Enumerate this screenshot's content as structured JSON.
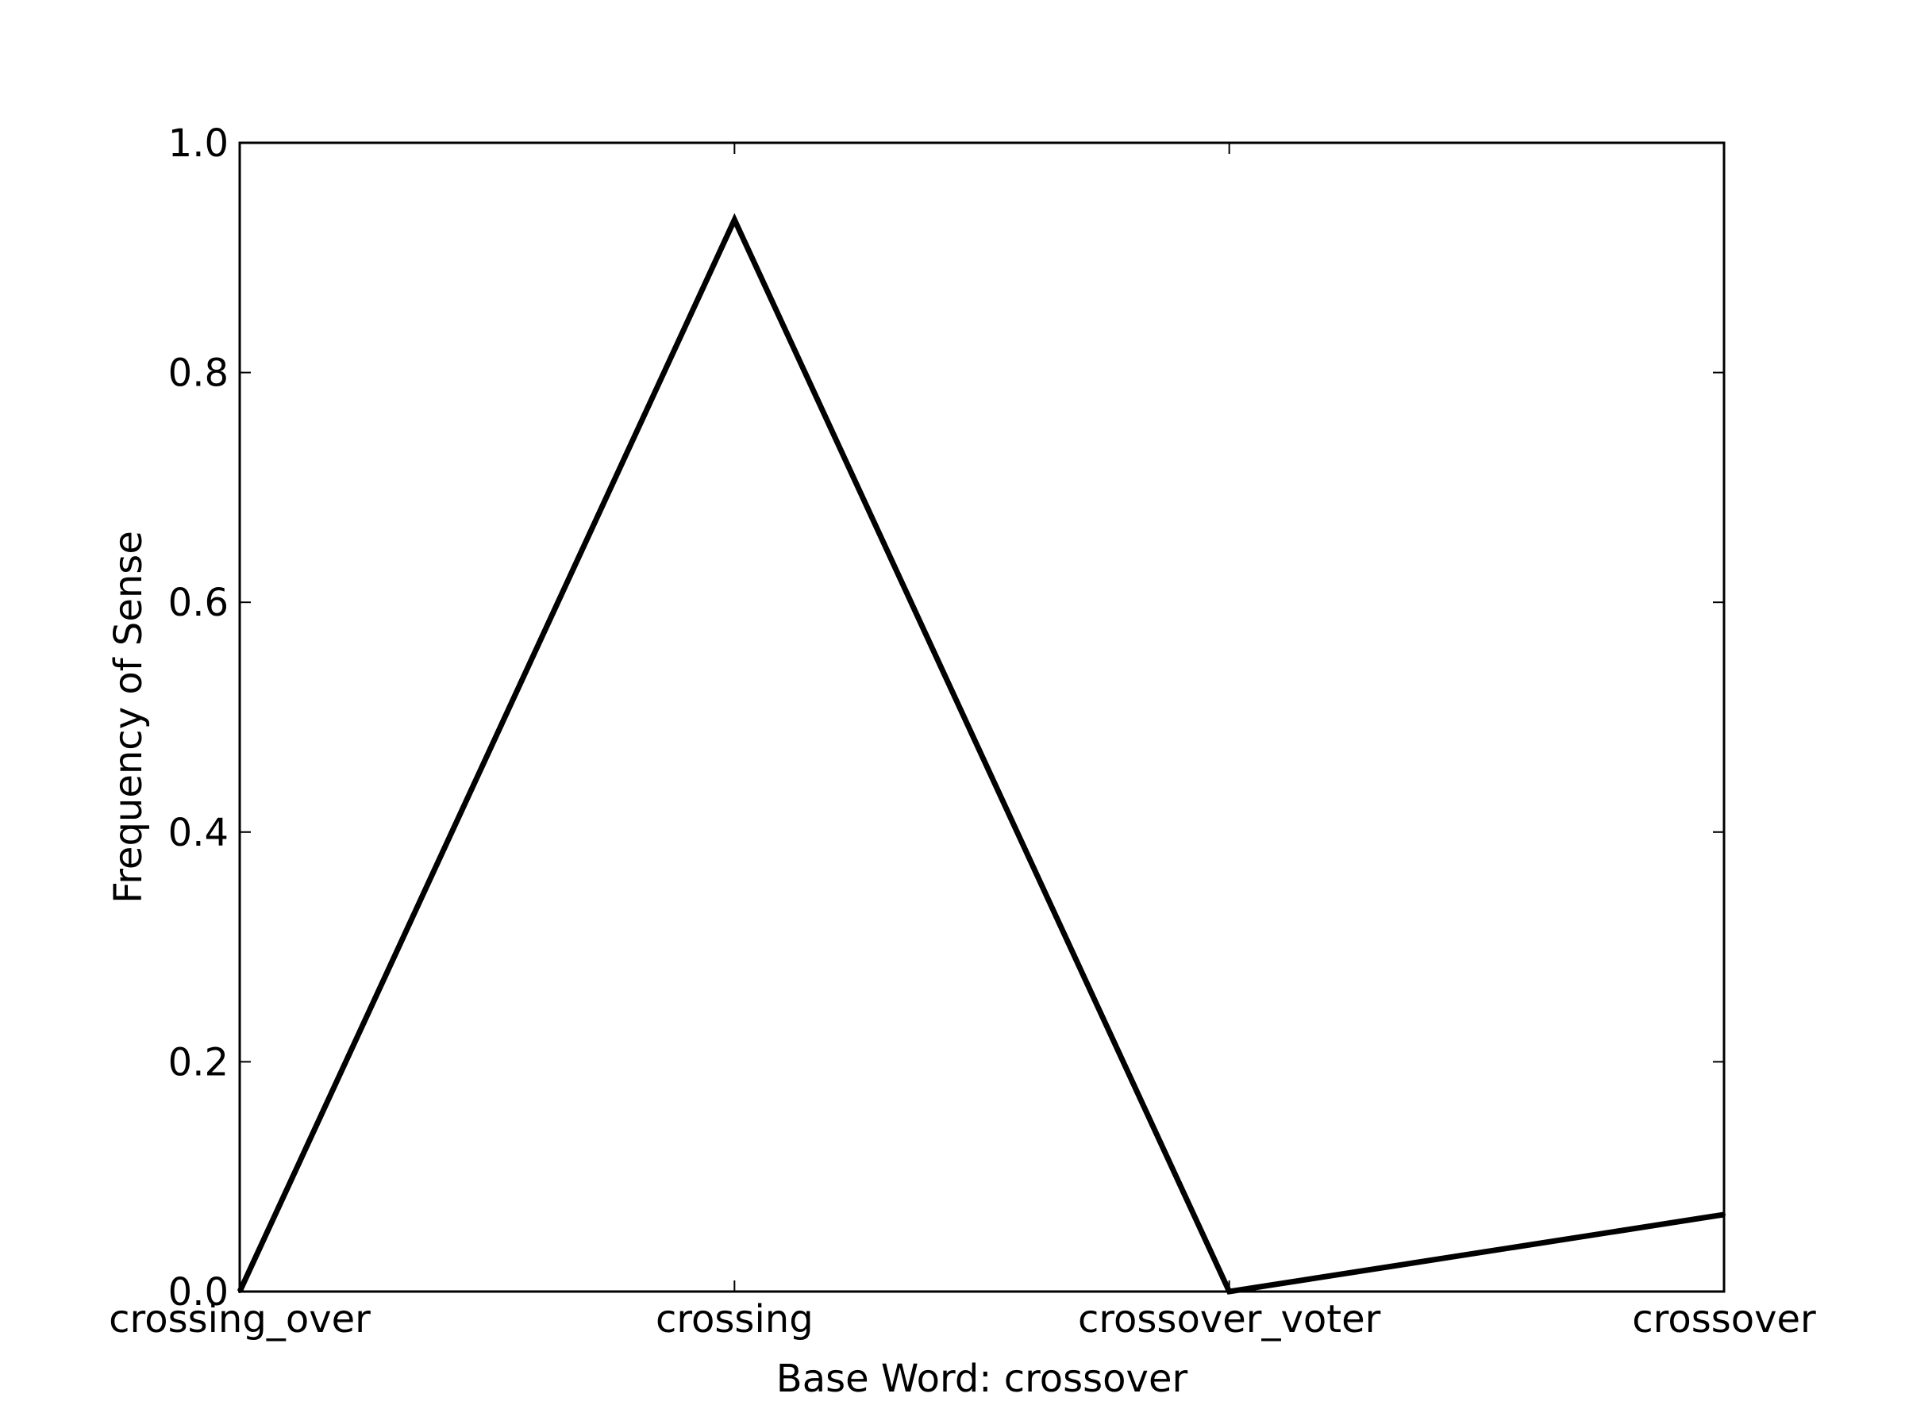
{
  "chart_data": {
    "type": "line",
    "categories": [
      "crossing_over",
      "crossing",
      "crossover_voter",
      "crossover"
    ],
    "series": [
      {
        "values": [
          0.0,
          0.933,
          0.0,
          0.067
        ]
      }
    ],
    "xlabel": "Base Word: crossover",
    "ylabel": "Frequency of Sense",
    "ylim": [
      0.0,
      1.0
    ],
    "yticks": [
      0.0,
      0.2,
      0.4,
      0.6,
      0.8,
      1.0
    ],
    "ytick_labels": [
      "0.0",
      "0.2",
      "0.4",
      "0.6",
      "0.8",
      "1.0"
    ],
    "grid": false,
    "legend": "none",
    "line_color": "#000000"
  }
}
